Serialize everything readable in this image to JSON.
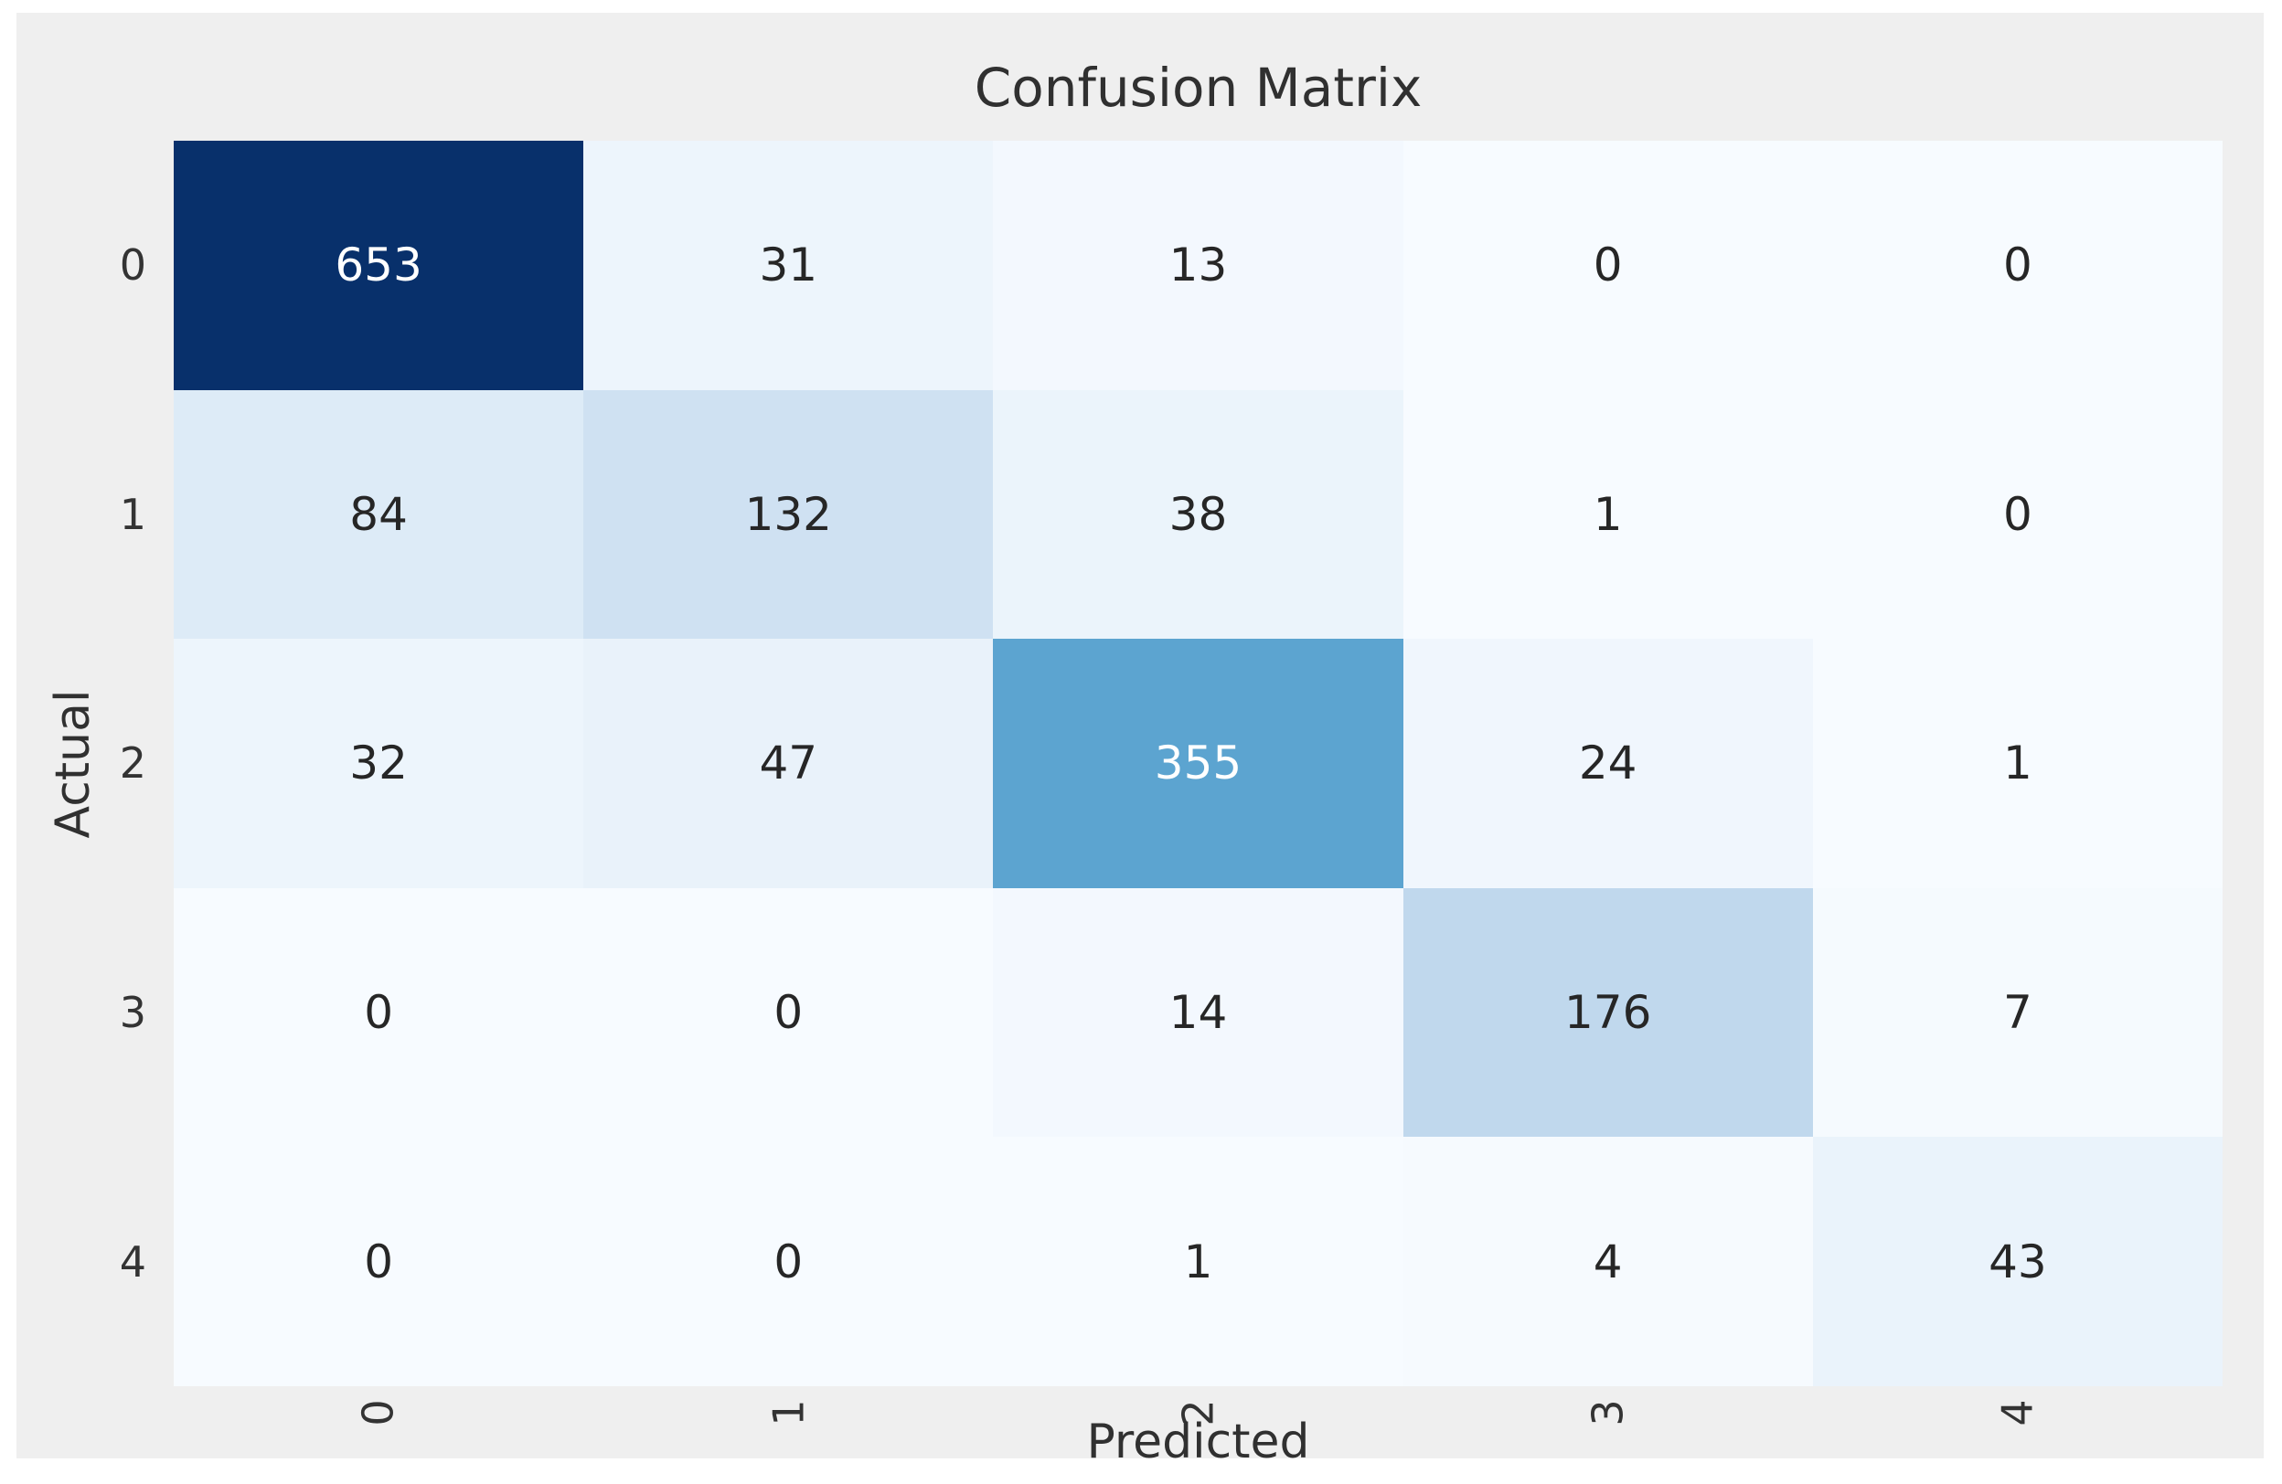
{
  "figure": {
    "page_background": "#ffffff",
    "background": "#efefef",
    "title_color": "#303030",
    "tick_color": "#333333"
  },
  "chart_data": {
    "type": "heatmap",
    "title": "Confusion Matrix",
    "xlabel": "Predicted",
    "ylabel": "Actual",
    "x_tick_labels": [
      "0",
      "1",
      "2",
      "3",
      "4"
    ],
    "y_tick_labels": [
      "0",
      "1",
      "2",
      "3",
      "4"
    ],
    "x_tick_rotation_deg": 90,
    "categories_note": "rows = Actual class, columns = Predicted class",
    "values": [
      [
        653,
        31,
        13,
        0,
        0
      ],
      [
        84,
        132,
        38,
        1,
        0
      ],
      [
        32,
        47,
        355,
        24,
        1
      ],
      [
        0,
        0,
        14,
        176,
        7
      ],
      [
        0,
        0,
        1,
        4,
        43
      ]
    ],
    "vmin": 0,
    "vmax": 653,
    "colormap": "Blues",
    "cell_colors": [
      [
        "#08306b",
        "#edf5fc",
        "#f3f8fe",
        "#f7fbff",
        "#f7fbff"
      ],
      [
        "#ddebf7",
        "#cfe1f2",
        "#ebf4fb",
        "#f7fbff",
        "#f7fbff"
      ],
      [
        "#edf5fc",
        "#e9f2fa",
        "#5ca4d0",
        "#f0f6fd",
        "#f7fbff"
      ],
      [
        "#f7fbff",
        "#f7fbff",
        "#f3f8fe",
        "#c0d8ed",
        "#f5fafe"
      ],
      [
        "#f7fbff",
        "#f7fbff",
        "#f7fbff",
        "#f6fafe",
        "#eaf3fb"
      ]
    ],
    "annot_light_color": "#ffffff",
    "annot_dark_color": "#262626",
    "light_text_threshold": 0.45,
    "grid": false,
    "legend": "none",
    "colorbar": false
  }
}
